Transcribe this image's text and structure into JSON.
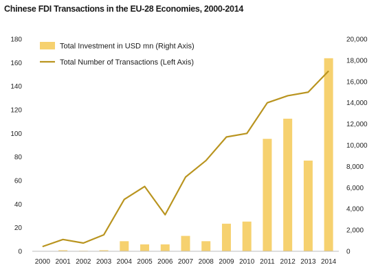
{
  "chart_data": {
    "type": "bar+line",
    "title": "Chinese FDI Transactions in the EU-28 Economies, 2000-2014",
    "categories": [
      "2000",
      "2001",
      "2002",
      "2003",
      "2004",
      "2005",
      "2006",
      "2007",
      "2008",
      "2009",
      "2010",
      "2011",
      "2012",
      "2013",
      "2014"
    ],
    "series": [
      {
        "name": "Total Investment in USD mn (Right Axis)",
        "type": "bar",
        "axis": "right",
        "color": "#f6d16f",
        "values": [
          0,
          100,
          50,
          100,
          950,
          650,
          650,
          1450,
          950,
          2600,
          2800,
          10600,
          12500,
          8550,
          18200
        ]
      },
      {
        "name": "Total Number of Transactions (Left Axis)",
        "type": "line",
        "axis": "left",
        "color": "#b9941f",
        "values": [
          4,
          10,
          7,
          14,
          44,
          55,
          31,
          63,
          77,
          97,
          100,
          126,
          132,
          135,
          153
        ]
      }
    ],
    "y_left": {
      "min": 0,
      "max": 180,
      "ticks": [
        "0",
        "20",
        "40",
        "60",
        "80",
        "100",
        "120",
        "140",
        "160",
        "180"
      ]
    },
    "y_right": {
      "min": 0,
      "max": 20000,
      "ticks": [
        "0",
        "2,000",
        "4,000",
        "6,000",
        "8,000",
        "10,000",
        "12,000",
        "14,000",
        "16,000",
        "18,000",
        "20,000"
      ]
    },
    "grid": false,
    "legend_position": "top-left"
  }
}
